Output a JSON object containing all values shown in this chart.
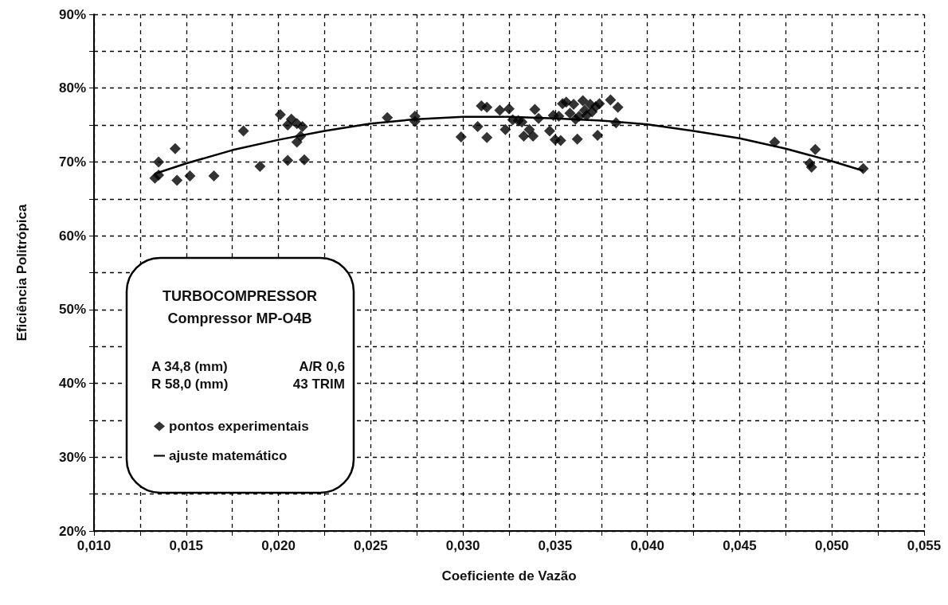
{
  "chart_data": {
    "type": "scatter",
    "xlabel": "Coeficiente de Vazão",
    "ylabel": "Eficiência Politrópica",
    "annotations": [
      "TURBOCOMPRESSOR",
      "Compressor MP-O4B",
      "A 34,8 (mm)",
      "A/R 0,6",
      "R 58,0 (mm)",
      "43 TRIM"
    ],
    "xlim": [
      0.01,
      0.055
    ],
    "xticks": [
      {
        "value": 0.01,
        "label": "0,010"
      },
      {
        "value": 0.0125,
        "label": null
      },
      {
        "value": 0.015,
        "label": "0,015"
      },
      {
        "value": 0.0175,
        "label": null
      },
      {
        "value": 0.02,
        "label": "0,020"
      },
      {
        "value": 0.0225,
        "label": null
      },
      {
        "value": 0.025,
        "label": "0,025"
      },
      {
        "value": 0.0275,
        "label": null
      },
      {
        "value": 0.03,
        "label": "0,030"
      },
      {
        "value": 0.0325,
        "label": null
      },
      {
        "value": 0.035,
        "label": "0,035"
      },
      {
        "value": 0.0375,
        "label": null
      },
      {
        "value": 0.04,
        "label": "0,040"
      },
      {
        "value": 0.0425,
        "label": null
      },
      {
        "value": 0.045,
        "label": "0,045"
      },
      {
        "value": 0.0475,
        "label": null
      },
      {
        "value": 0.05,
        "label": "0,050"
      },
      {
        "value": 0.0525,
        "label": null
      },
      {
        "value": 0.055,
        "label": "0,055"
      }
    ],
    "ylim": [
      20,
      90
    ],
    "yticks": [
      {
        "value": 20,
        "label": "20%"
      },
      {
        "value": 25,
        "label": null
      },
      {
        "value": 30,
        "label": "30%"
      },
      {
        "value": 35,
        "label": null
      },
      {
        "value": 40,
        "label": "40%"
      },
      {
        "value": 45,
        "label": null
      },
      {
        "value": 50,
        "label": "50%"
      },
      {
        "value": 55,
        "label": null
      },
      {
        "value": 60,
        "label": "60%"
      },
      {
        "value": 65,
        "label": null
      },
      {
        "value": 70,
        "label": "70%"
      },
      {
        "value": 75,
        "label": null
      },
      {
        "value": 80,
        "label": "80%"
      },
      {
        "value": 85,
        "label": null
      },
      {
        "value": 90,
        "label": "90%"
      }
    ],
    "grid": true,
    "legend": "bottom left",
    "marker": "diamond",
    "series": [
      {
        "name": "pontos experimentais",
        "color": "#000000",
        "x": [
          0.0133,
          0.0135,
          0.0135,
          0.0144,
          0.0145,
          0.0152,
          0.0165,
          0.0181,
          0.019,
          0.0201,
          0.0205,
          0.0207,
          0.021,
          0.021,
          0.0212,
          0.0213,
          0.0205,
          0.0214,
          0.0259,
          0.0274,
          0.0274,
          0.0299,
          0.0308,
          0.031,
          0.0313,
          0.0313,
          0.032,
          0.0323,
          0.0325,
          0.0327,
          0.033,
          0.0332,
          0.0333,
          0.0336,
          0.0338,
          0.0339,
          0.0341,
          0.0347,
          0.0349,
          0.035,
          0.0352,
          0.0353,
          0.0354,
          0.0356,
          0.0358,
          0.036,
          0.0361,
          0.0362,
          0.0363,
          0.0365,
          0.0366,
          0.0367,
          0.0369,
          0.037,
          0.0372,
          0.0373,
          0.0374,
          0.038,
          0.0383,
          0.0384,
          0.0469,
          0.0488,
          0.0489,
          0.0491,
          0.0517
        ],
        "values": [
          67.8,
          68.2,
          70.0,
          71.8,
          67.5,
          68.1,
          68.1,
          74.2,
          69.4,
          76.4,
          75.0,
          75.8,
          75.2,
          72.7,
          73.5,
          74.8,
          70.2,
          70.3,
          76.0,
          75.5,
          76.2,
          73.4,
          74.8,
          77.6,
          77.4,
          73.3,
          77.0,
          74.4,
          77.2,
          75.7,
          75.6,
          75.4,
          73.5,
          74.4,
          73.5,
          77.1,
          75.9,
          74.2,
          76.3,
          73.0,
          76.2,
          72.9,
          77.9,
          78.1,
          76.6,
          77.8,
          75.8,
          73.1,
          76.2,
          78.3,
          77.0,
          76.3,
          77.8,
          76.8,
          77.5,
          73.6,
          77.9,
          78.4,
          75.3,
          77.4,
          72.7,
          69.8,
          69.3,
          71.7,
          69.1
        ]
      },
      {
        "name": "ajuste matemático",
        "type": "line",
        "marker": "none",
        "color": "#000000",
        "x": [
          0.0133,
          0.015,
          0.0175,
          0.02,
          0.0225,
          0.025,
          0.0275,
          0.03,
          0.0325,
          0.035,
          0.0375,
          0.04,
          0.0425,
          0.045,
          0.0475,
          0.05,
          0.0517
        ],
        "values": [
          68.4,
          69.8,
          71.6,
          73.0,
          74.2,
          75.2,
          75.8,
          76.1,
          76.1,
          75.9,
          75.6,
          75.1,
          74.2,
          73.2,
          71.8,
          70.1,
          68.8
        ]
      }
    ]
  }
}
